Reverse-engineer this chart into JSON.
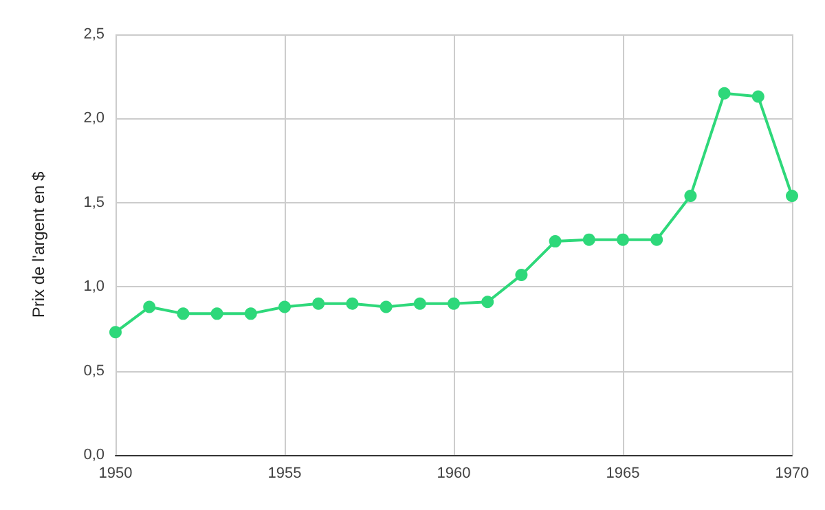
{
  "chart_data": {
    "type": "line",
    "ylabel": "Prix de l'argent en $",
    "x": [
      1950,
      1951,
      1952,
      1953,
      1954,
      1955,
      1956,
      1957,
      1958,
      1959,
      1960,
      1961,
      1962,
      1963,
      1964,
      1965,
      1966,
      1967,
      1968,
      1969,
      1970
    ],
    "series": [
      {
        "color": "#2ed87a",
        "values": [
          0.73,
          0.88,
          0.84,
          0.84,
          0.84,
          0.88,
          0.9,
          0.9,
          0.88,
          0.9,
          0.9,
          0.91,
          1.07,
          1.27,
          1.28,
          1.28,
          1.28,
          1.54,
          2.15,
          2.13,
          1.54
        ]
      }
    ],
    "xlim": [
      1950,
      1970
    ],
    "xticks": [
      1950,
      1955,
      1960,
      1965,
      1970
    ],
    "ylim": [
      0,
      2.5
    ],
    "yticks": [
      {
        "value": 0,
        "label": "0,0"
      },
      {
        "value": 0.5,
        "label": "0,5"
      },
      {
        "value": 1,
        "label": "1,0"
      },
      {
        "value": 1.5,
        "label": "1,5"
      },
      {
        "value": 2,
        "label": "2,0"
      },
      {
        "value": 2.5,
        "label": "2,5"
      }
    ],
    "grid": true,
    "marker": "circle",
    "line_style": "solid"
  }
}
